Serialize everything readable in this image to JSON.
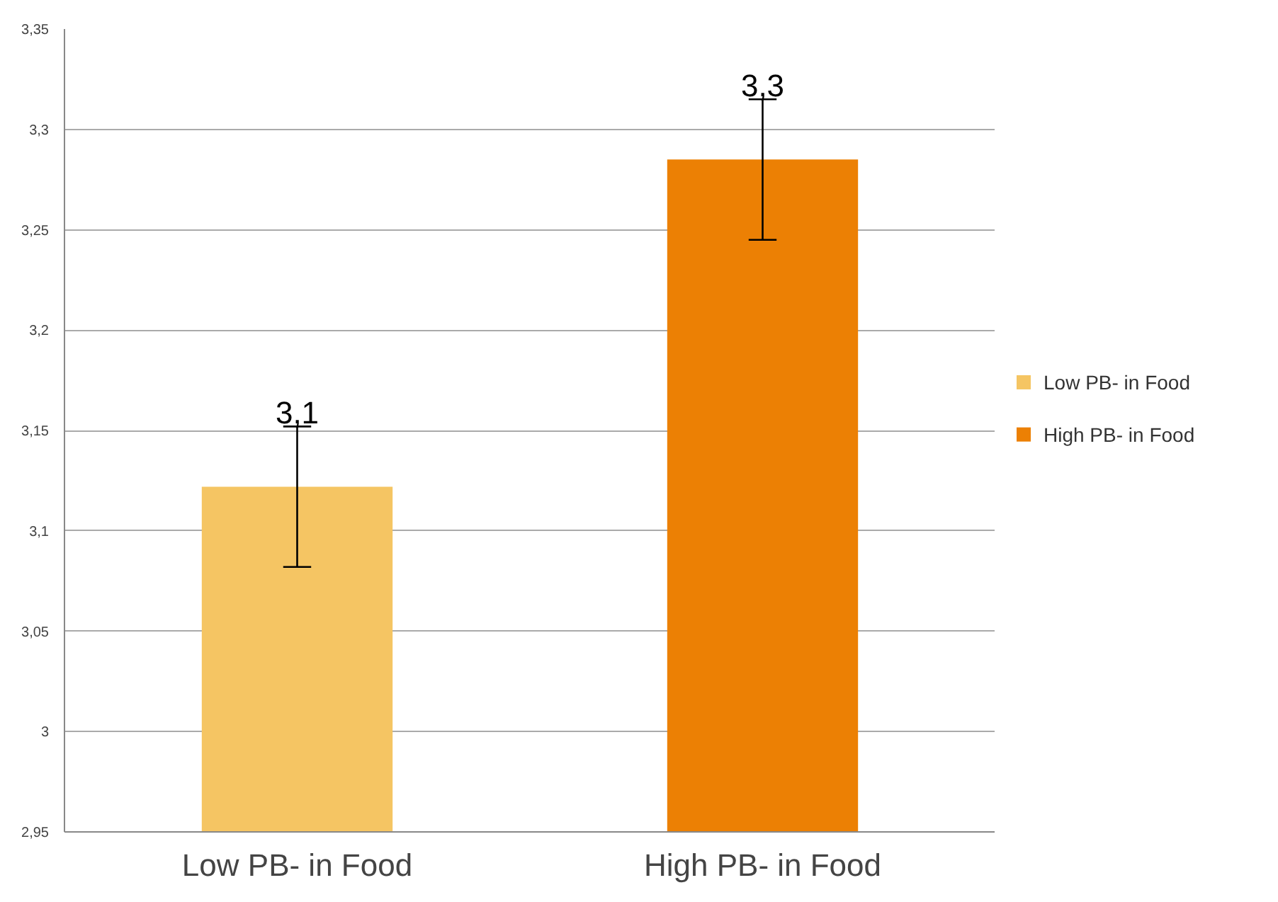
{
  "chart_data": {
    "type": "bar",
    "categories": [
      "Low PB- in Food",
      "High PB- in Food"
    ],
    "series": [
      {
        "name": "Low PB- in Food",
        "color": "#f5c563",
        "values": [
          3.122,
          null
        ],
        "errors": [
          [
            3.082,
            3.152
          ],
          null
        ],
        "value_labels": [
          "3,1",
          null
        ]
      },
      {
        "name": "High PB- in Food",
        "color": "#ec8004",
        "values": [
          null,
          3.285
        ],
        "errors": [
          null,
          [
            3.245,
            3.315
          ]
        ],
        "value_labels": [
          null,
          "3,3"
        ]
      }
    ],
    "ylim": [
      2.95,
      3.35
    ],
    "yticks": [
      {
        "value": 2.95,
        "label": "2,95"
      },
      3,
      {
        "value": 3.05,
        "label": "3,05"
      },
      {
        "value": 3.1,
        "label": "3,1"
      },
      {
        "value": 3.15,
        "label": "3,15"
      },
      {
        "value": 3.2,
        "label": "3,2"
      },
      {
        "value": 3.25,
        "label": "3,25"
      },
      {
        "value": 3.3,
        "label": "3,3"
      },
      {
        "value": 3.35,
        "label": "3,35"
      }
    ],
    "grid": "y",
    "legend": "right"
  }
}
